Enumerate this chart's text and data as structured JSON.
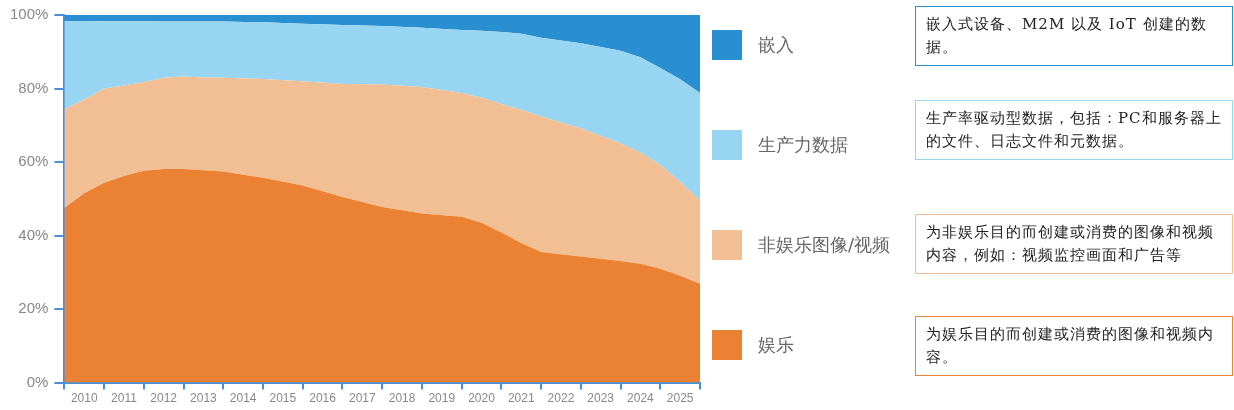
{
  "chart_data": {
    "type": "area",
    "stacked": true,
    "legend": "right",
    "grid": false,
    "marker": "none",
    "x": [
      2010,
      2010.5,
      2011,
      2011.5,
      2012,
      2012.5,
      2013,
      2013.5,
      2014,
      2015,
      2016,
      2017,
      2018,
      2019,
      2020,
      2020.5,
      2021,
      2021.5,
      2022,
      2023,
      2024,
      2024.5,
      2025,
      2025.5,
      2026
    ],
    "xlim": [
      2010,
      2026
    ],
    "xticks": [
      {
        "value": 2010,
        "label": null
      },
      {
        "value": 2010.5,
        "label": "2010"
      },
      {
        "value": 2011,
        "label": null
      },
      {
        "value": 2011.5,
        "label": "2011"
      },
      {
        "value": 2012,
        "label": null
      },
      {
        "value": 2012.5,
        "label": "2012"
      },
      {
        "value": 2013,
        "label": null
      },
      {
        "value": 2013.5,
        "label": "2013"
      },
      {
        "value": 2014,
        "label": null
      },
      {
        "value": 2014.5,
        "label": "2014"
      },
      {
        "value": 2015,
        "label": null
      },
      {
        "value": 2015.5,
        "label": "2015"
      },
      {
        "value": 2016,
        "label": null
      },
      {
        "value": 2016.5,
        "label": "2016"
      },
      {
        "value": 2017,
        "label": null
      },
      {
        "value": 2017.5,
        "label": "2017"
      },
      {
        "value": 2018,
        "label": null
      },
      {
        "value": 2018.5,
        "label": "2018"
      },
      {
        "value": 2019,
        "label": null
      },
      {
        "value": 2019.5,
        "label": "2019"
      },
      {
        "value": 2020,
        "label": null
      },
      {
        "value": 2020.5,
        "label": "2020"
      },
      {
        "value": 2021,
        "label": null
      },
      {
        "value": 2021.5,
        "label": "2021"
      },
      {
        "value": 2022,
        "label": null
      },
      {
        "value": 2022.5,
        "label": "2022"
      },
      {
        "value": 2023,
        "label": null
      },
      {
        "value": 2023.5,
        "label": "2023"
      },
      {
        "value": 2024,
        "label": null
      },
      {
        "value": 2024.5,
        "label": "2024"
      },
      {
        "value": 2025,
        "label": null
      },
      {
        "value": 2025.5,
        "label": "2025"
      },
      {
        "value": 2026,
        "label": null
      }
    ],
    "ylim": [
      0,
      100
    ],
    "yticks": [
      {
        "value": 0,
        "label": "0%"
      },
      {
        "value": 20,
        "label": "20%"
      },
      {
        "value": 40,
        "label": "40%"
      },
      {
        "value": 60,
        "label": "60%"
      },
      {
        "value": 80,
        "label": "80%"
      },
      {
        "value": 100,
        "label": "100%"
      }
    ],
    "series": [
      {
        "name": "娱乐",
        "color": "#eb8233",
        "values": [
          47.5,
          51.5,
          54.4,
          56.2,
          57.6,
          58.1,
          58.1,
          57.8,
          57.4,
          55.7,
          53.6,
          50.5,
          47.8,
          46.0,
          45.1,
          43.5,
          40.8,
          38.0,
          35.5,
          34.3,
          33.1,
          32.3,
          31.0,
          29.1,
          26.9
        ]
      },
      {
        "name": "非娱乐图像/视频",
        "color": "#f2bf94",
        "values": [
          26.9,
          25.5,
          25.6,
          24.6,
          24.2,
          24.8,
          25.2,
          25.2,
          25.5,
          26.9,
          28.4,
          30.7,
          33.3,
          34.4,
          33.7,
          34.0,
          35.0,
          36.2,
          36.9,
          34.9,
          32.0,
          30.3,
          28.2,
          25.5,
          22.7
        ]
      },
      {
        "name": "生产力数据",
        "color": "#97d5f2",
        "values": [
          24.0,
          21.4,
          18.3,
          17.5,
          16.5,
          15.3,
          14.9,
          15.2,
          15.3,
          15.4,
          15.6,
          16.1,
          15.9,
          16.1,
          17.1,
          18.2,
          19.6,
          20.7,
          21.4,
          23.1,
          25.2,
          25.9,
          26.4,
          27.9,
          29.2
        ]
      },
      {
        "name": "嵌入",
        "color": "#2a8fd0",
        "values": [
          1.6,
          1.6,
          1.7,
          1.7,
          1.7,
          1.8,
          1.8,
          1.8,
          1.8,
          2.0,
          2.4,
          2.7,
          3.0,
          3.5,
          4.1,
          4.3,
          4.6,
          5.1,
          6.2,
          7.7,
          9.7,
          11.5,
          14.4,
          17.5,
          21.2
        ]
      }
    ],
    "annotations": [
      "嵌入式设备、M2M 以及 IoT 创建的数据。",
      "生产率驱动型数据，包括：PC和服务器上的文件、日志文件和元数据。",
      "为非娱乐目的而创建或消费的图像和视频内容，例如：视频监控画面和广告等",
      "为娱乐目的而创建或消费的图像和视频内容。"
    ]
  }
}
